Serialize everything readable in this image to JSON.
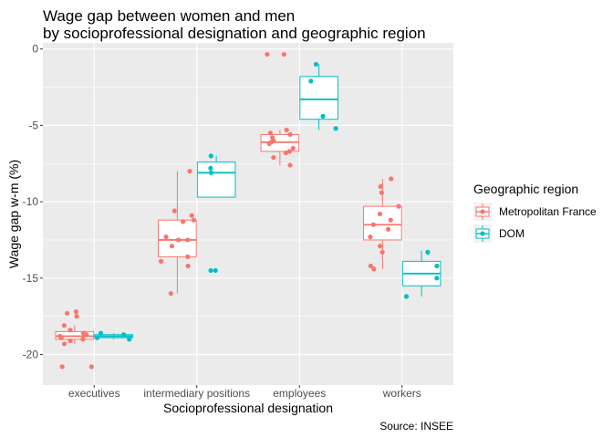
{
  "chart_data": {
    "type": "box",
    "title_lines": [
      "Wage gap between women and men",
      "by socioprofessional designation and geographic region"
    ],
    "xlabel": "Socioprofessional designation",
    "ylabel": "Wage gap w-m (%)",
    "caption": "Source: INSEE",
    "categories": [
      "executives",
      "intermediary positions",
      "employees",
      "workers"
    ],
    "ylim": [
      -22,
      0.4
    ],
    "yticks": [
      0,
      -5,
      -10,
      -15,
      -20
    ],
    "grid": true,
    "legend": {
      "title": "Geographic region",
      "position": "right"
    },
    "series": [
      {
        "name": "Metropolitan France",
        "color": "#F8766D",
        "boxes": [
          {
            "category": "executives",
            "q1": -19.0,
            "median": -18.8,
            "q3": -18.5,
            "whisker_low": -19.3,
            "whisker_high": -18.1,
            "points": [
              -17.2,
              -17.3,
              -17.5,
              -18.1,
              -18.4,
              -18.6,
              -18.7,
              -18.8,
              -18.9,
              -19.0,
              -19.1,
              -19.3,
              -20.8,
              -20.8
            ]
          },
          {
            "category": "intermediary positions",
            "q1": -13.6,
            "median": -12.5,
            "q3": -11.2,
            "whisker_low": -16.0,
            "whisker_high": -8.0,
            "points": [
              -8.0,
              -10.6,
              -10.9,
              -11.2,
              -11.3,
              -12.3,
              -12.5,
              -12.5,
              -12.9,
              -13.6,
              -13.9,
              -14.2,
              -16.0
            ]
          },
          {
            "category": "employees",
            "q1": -6.7,
            "median": -6.1,
            "q3": -5.6,
            "whisker_low": -7.6,
            "whisker_high": -5.3,
            "points": [
              -0.35,
              -0.35,
              -5.3,
              -5.5,
              -5.6,
              -5.8,
              -6.0,
              -6.1,
              -6.2,
              -6.5,
              -6.7,
              -6.8,
              -7.1,
              -7.6
            ]
          },
          {
            "category": "workers",
            "q1": -12.5,
            "median": -11.5,
            "q3": -10.3,
            "whisker_low": -14.4,
            "whisker_high": -8.5,
            "points": [
              -8.5,
              -9.0,
              -9.4,
              -10.3,
              -10.8,
              -11.2,
              -11.5,
              -11.8,
              -12.3,
              -12.9,
              -13.3,
              -14.2,
              -14.4
            ]
          }
        ]
      },
      {
        "name": "DOM",
        "color": "#00BFC4",
        "boxes": [
          {
            "category": "executives",
            "q1": -18.9,
            "median": -18.8,
            "q3": -18.7,
            "whisker_low": -19.0,
            "whisker_high": -18.6,
            "points": [
              -18.6,
              -18.7,
              -18.9,
              -19.0
            ]
          },
          {
            "category": "intermediary positions",
            "q1": -9.7,
            "median": -8.1,
            "q3": -7.4,
            "whisker_low": -9.7,
            "whisker_high": -7.0,
            "points": [
              -7.0,
              -7.8,
              -8.1,
              -14.5,
              -14.5
            ]
          },
          {
            "category": "employees",
            "q1": -4.6,
            "median": -3.3,
            "q3": -1.8,
            "whisker_low": -5.3,
            "whisker_high": -1.0,
            "points": [
              -1.0,
              -2.1,
              -4.4,
              -5.2
            ]
          },
          {
            "category": "workers",
            "q1": -15.5,
            "median": -14.7,
            "q3": -13.9,
            "whisker_low": -16.2,
            "whisker_high": -13.2,
            "points": [
              -13.3,
              -14.2,
              -15.0,
              -16.2
            ]
          }
        ]
      }
    ]
  }
}
